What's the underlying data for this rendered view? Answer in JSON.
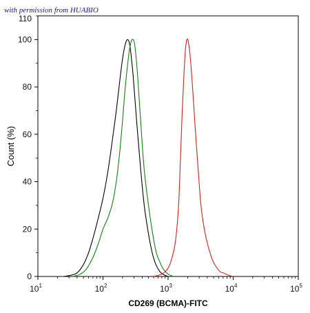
{
  "watermark": "with permission from HUABIO",
  "chart_data": {
    "type": "line",
    "title": "",
    "xlabel": "CD269 (BCMA)-FITC",
    "ylabel": "Count (%)",
    "xscale": "log",
    "xlim": [
      10,
      100000
    ],
    "ylim": [
      0,
      110
    ],
    "x_ticks": [
      10,
      100,
      1000,
      10000,
      100000
    ],
    "x_tick_labels": [
      {
        "base": "10",
        "exp": "1"
      },
      {
        "base": "10",
        "exp": "2"
      },
      {
        "base": "10",
        "exp": "3"
      },
      {
        "base": "10",
        "exp": "4"
      },
      {
        "base": "10",
        "exp": "5"
      }
    ],
    "y_ticks": [
      0,
      20,
      40,
      60,
      80,
      100
    ],
    "y_tick_labels": [
      "0",
      "20",
      "40",
      "60",
      "80",
      "100"
    ],
    "y_top_label": "110",
    "grid": false,
    "legend": "none",
    "series": [
      {
        "color": "#000000",
        "points": [
          [
            25,
            0
          ],
          [
            32,
            0.5
          ],
          [
            40,
            1.5
          ],
          [
            50,
            5
          ],
          [
            60,
            10
          ],
          [
            70,
            16
          ],
          [
            80,
            22
          ],
          [
            100,
            33
          ],
          [
            120,
            45
          ],
          [
            140,
            58
          ],
          [
            160,
            70
          ],
          [
            180,
            82
          ],
          [
            200,
            92
          ],
          [
            220,
            98
          ],
          [
            240,
            100
          ],
          [
            260,
            97
          ],
          [
            290,
            85
          ],
          [
            330,
            65
          ],
          [
            380,
            45
          ],
          [
            430,
            30
          ],
          [
            500,
            18
          ],
          [
            570,
            10
          ],
          [
            650,
            5
          ],
          [
            750,
            2
          ],
          [
            850,
            0.8
          ],
          [
            1000,
            0
          ]
        ]
      },
      {
        "color": "#1a7a1a",
        "points": [
          [
            35,
            0
          ],
          [
            45,
            1
          ],
          [
            55,
            3
          ],
          [
            70,
            8
          ],
          [
            85,
            14
          ],
          [
            100,
            20
          ],
          [
            120,
            25
          ],
          [
            140,
            31
          ],
          [
            160,
            40
          ],
          [
            180,
            52
          ],
          [
            200,
            66
          ],
          [
            220,
            80
          ],
          [
            250,
            94
          ],
          [
            270,
            99
          ],
          [
            290,
            100
          ],
          [
            310,
            97
          ],
          [
            340,
            85
          ],
          [
            380,
            65
          ],
          [
            430,
            45
          ],
          [
            500,
            30
          ],
          [
            580,
            18
          ],
          [
            660,
            10
          ],
          [
            750,
            6
          ],
          [
            850,
            3
          ],
          [
            1000,
            1
          ],
          [
            1200,
            0
          ]
        ]
      },
      {
        "color": "#cc2222",
        "points": [
          [
            600,
            0
          ],
          [
            800,
            1
          ],
          [
            1000,
            3.5
          ],
          [
            1150,
            8
          ],
          [
            1300,
            15
          ],
          [
            1450,
            30
          ],
          [
            1550,
            50
          ],
          [
            1650,
            70
          ],
          [
            1750,
            85
          ],
          [
            1850,
            96
          ],
          [
            1950,
            100
          ],
          [
            2050,
            99
          ],
          [
            2200,
            92
          ],
          [
            2400,
            78
          ],
          [
            2650,
            60
          ],
          [
            2900,
            45
          ],
          [
            3200,
            30
          ],
          [
            3600,
            20
          ],
          [
            4100,
            13
          ],
          [
            4800,
            7
          ],
          [
            5500,
            4
          ],
          [
            6300,
            2
          ],
          [
            7100,
            1.5
          ],
          [
            8000,
            0.8
          ],
          [
            9000,
            0.3
          ],
          [
            10000,
            0
          ]
        ]
      }
    ]
  }
}
